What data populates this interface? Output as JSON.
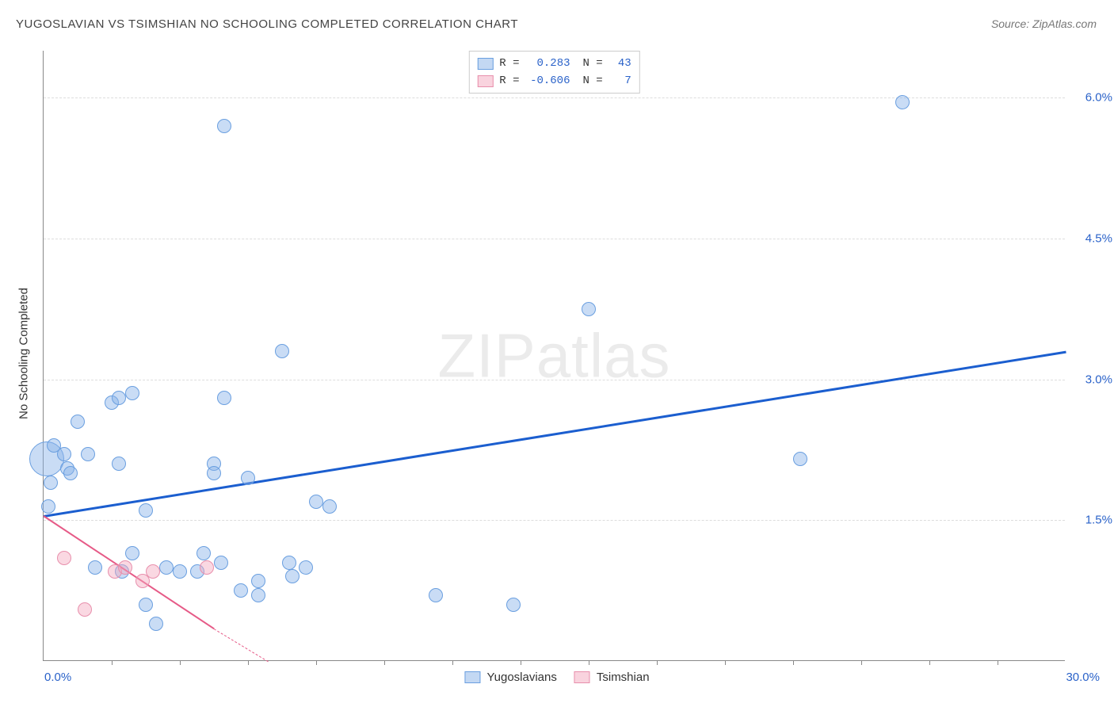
{
  "title": "YUGOSLAVIAN VS TSIMSHIAN NO SCHOOLING COMPLETED CORRELATION CHART",
  "source": "Source: ZipAtlas.com",
  "ylabel": "No Schooling Completed",
  "watermark_a": "ZIP",
  "watermark_b": "atlas",
  "chart": {
    "type": "scatter",
    "xlim": [
      0,
      30
    ],
    "ylim": [
      0,
      6.5
    ],
    "x_tick_start": "0.0%",
    "x_tick_end": "30.0%",
    "x_minor_ticks": [
      2,
      4,
      6,
      8,
      10,
      12,
      14,
      16,
      18,
      20,
      22,
      24,
      26,
      28
    ],
    "y_gridlines": [
      {
        "value": 1.5,
        "label": "1.5%"
      },
      {
        "value": 3.0,
        "label": "3.0%"
      },
      {
        "value": 4.5,
        "label": "4.5%"
      },
      {
        "value": 6.0,
        "label": "6.0%"
      }
    ],
    "background_color": "#ffffff",
    "grid_color": "#dddddd",
    "axis_color": "#888888",
    "series": [
      {
        "name": "Yugoslavians",
        "color_fill": "rgba(135,178,232,0.45)",
        "color_stroke": "#6a9fe0",
        "class": "blue",
        "R": "0.283",
        "N": "43",
        "trend": {
          "x1": 0,
          "y1": 1.55,
          "x2": 30,
          "y2": 3.3,
          "color": "#1b5ecf",
          "width": 2.5
        },
        "points": [
          {
            "x": 0.1,
            "y": 2.15,
            "r": 22
          },
          {
            "x": 0.15,
            "y": 1.65,
            "r": 9
          },
          {
            "x": 0.2,
            "y": 1.9,
            "r": 9
          },
          {
            "x": 0.3,
            "y": 2.3,
            "r": 9
          },
          {
            "x": 0.6,
            "y": 2.2,
            "r": 9
          },
          {
            "x": 0.7,
            "y": 2.05,
            "r": 9
          },
          {
            "x": 1.0,
            "y": 2.55,
            "r": 9
          },
          {
            "x": 2.0,
            "y": 2.75,
            "r": 9
          },
          {
            "x": 2.6,
            "y": 2.85,
            "r": 9
          },
          {
            "x": 2.2,
            "y": 2.8,
            "r": 9
          },
          {
            "x": 2.2,
            "y": 2.1,
            "r": 9
          },
          {
            "x": 3.0,
            "y": 1.6,
            "r": 9
          },
          {
            "x": 2.6,
            "y": 1.15,
            "r": 9
          },
          {
            "x": 2.3,
            "y": 0.95,
            "r": 9
          },
          {
            "x": 3.6,
            "y": 1.0,
            "r": 9
          },
          {
            "x": 3.0,
            "y": 0.6,
            "r": 9
          },
          {
            "x": 3.3,
            "y": 0.4,
            "r": 9
          },
          {
            "x": 4.0,
            "y": 0.95,
            "r": 9
          },
          {
            "x": 5.0,
            "y": 2.1,
            "r": 9
          },
          {
            "x": 5.0,
            "y": 2.0,
            "r": 9
          },
          {
            "x": 5.2,
            "y": 1.05,
            "r": 9
          },
          {
            "x": 5.3,
            "y": 2.8,
            "r": 9
          },
          {
            "x": 5.3,
            "y": 5.7,
            "r": 9
          },
          {
            "x": 6.0,
            "y": 1.95,
            "r": 9
          },
          {
            "x": 6.3,
            "y": 0.85,
            "r": 9
          },
          {
            "x": 6.3,
            "y": 0.7,
            "r": 9
          },
          {
            "x": 7.0,
            "y": 3.3,
            "r": 9
          },
          {
            "x": 7.2,
            "y": 1.05,
            "r": 9
          },
          {
            "x": 7.3,
            "y": 0.9,
            "r": 9
          },
          {
            "x": 7.7,
            "y": 1.0,
            "r": 9
          },
          {
            "x": 8.0,
            "y": 1.7,
            "r": 9
          },
          {
            "x": 8.4,
            "y": 1.65,
            "r": 9
          },
          {
            "x": 11.5,
            "y": 0.7,
            "r": 9
          },
          {
            "x": 13.8,
            "y": 0.6,
            "r": 9
          },
          {
            "x": 16.0,
            "y": 3.75,
            "r": 9
          },
          {
            "x": 22.2,
            "y": 2.15,
            "r": 9
          },
          {
            "x": 25.2,
            "y": 5.95,
            "r": 9
          },
          {
            "x": 1.5,
            "y": 1.0,
            "r": 9
          },
          {
            "x": 4.5,
            "y": 0.95,
            "r": 9
          },
          {
            "x": 4.7,
            "y": 1.15,
            "r": 9
          },
          {
            "x": 0.8,
            "y": 2.0,
            "r": 9
          },
          {
            "x": 1.3,
            "y": 2.2,
            "r": 9
          },
          {
            "x": 5.8,
            "y": 0.75,
            "r": 9
          }
        ]
      },
      {
        "name": "Tsimshian",
        "color_fill": "rgba(244,168,190,0.45)",
        "color_stroke": "#e88fac",
        "class": "pink",
        "R": "-0.606",
        "N": "7",
        "trend": {
          "x1": 0,
          "y1": 1.55,
          "x2": 5.0,
          "y2": 0.35,
          "color": "#e65a87",
          "width": 2
        },
        "trend_dash": {
          "x1": 5.0,
          "y1": 0.35,
          "x2": 6.6,
          "y2": 0.0,
          "color": "#e65a87"
        },
        "points": [
          {
            "x": 0.6,
            "y": 1.1,
            "r": 9
          },
          {
            "x": 1.2,
            "y": 0.55,
            "r": 9
          },
          {
            "x": 2.1,
            "y": 0.95,
            "r": 9
          },
          {
            "x": 2.4,
            "y": 1.0,
            "r": 9
          },
          {
            "x": 2.9,
            "y": 0.85,
            "r": 9
          },
          {
            "x": 3.2,
            "y": 0.95,
            "r": 9
          },
          {
            "x": 4.8,
            "y": 1.0,
            "r": 9
          }
        ]
      }
    ]
  },
  "legend_top": {
    "rows": [
      {
        "swatch": "blue",
        "r_label": "R =",
        "r_value": "0.283",
        "n_label": "N =",
        "n_value": "43"
      },
      {
        "swatch": "pink",
        "r_label": "R =",
        "r_value": "-0.606",
        "n_label": "N =",
        "n_value": "7"
      }
    ]
  },
  "legend_bottom": {
    "items": [
      {
        "swatch": "blue",
        "label": "Yugoslavians"
      },
      {
        "swatch": "pink",
        "label": "Tsimshian"
      }
    ]
  }
}
